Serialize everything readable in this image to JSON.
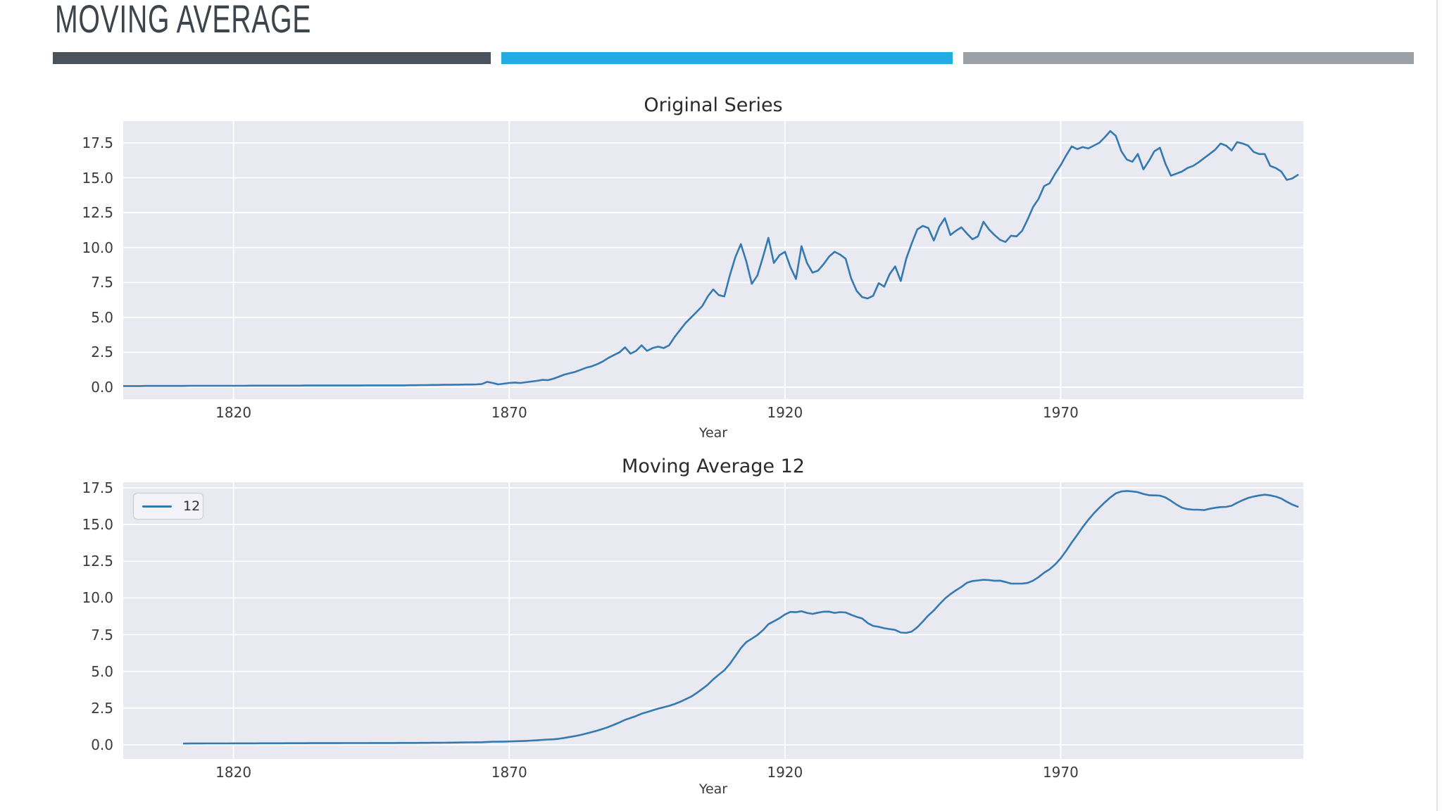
{
  "slide": {
    "title": "MOVING AVERAGE"
  },
  "colors": {
    "accent_dark": "#4a535b",
    "accent_blue": "#23ace4",
    "accent_gray": "#9ba1a6",
    "line": "#3579b1",
    "plot_bg": "#e9e9f1",
    "grid": "#ffffff",
    "title_text": "#3d454c",
    "chart_text": "#2b2b2b",
    "tick_text": "#3a3a3a"
  },
  "chart_data": [
    {
      "type": "line",
      "title": "Original Series",
      "xlabel": "Year",
      "ylabel": "",
      "grid": true,
      "legend": null,
      "x_ticks": [
        1820,
        1870,
        1920,
        1970
      ],
      "y_ticks": [
        "0.0",
        "2.5",
        "5.0",
        "7.5",
        "10.0",
        "12.5",
        "15.0",
        "17.5"
      ],
      "x_range": [
        1800,
        2014
      ],
      "y_range": [
        -0.86,
        19.06
      ],
      "series": [
        {
          "name": "original",
          "start_year": 1800,
          "values": [
            0.08,
            0.08,
            0.08,
            0.08,
            0.09,
            0.09,
            0.09,
            0.09,
            0.09,
            0.09,
            0.09,
            0.09,
            0.1,
            0.1,
            0.1,
            0.1,
            0.1,
            0.1,
            0.1,
            0.1,
            0.1,
            0.1,
            0.1,
            0.11,
            0.11,
            0.11,
            0.11,
            0.11,
            0.11,
            0.11,
            0.11,
            0.11,
            0.11,
            0.12,
            0.12,
            0.12,
            0.12,
            0.12,
            0.12,
            0.12,
            0.12,
            0.12,
            0.12,
            0.12,
            0.13,
            0.13,
            0.13,
            0.13,
            0.13,
            0.13,
            0.13,
            0.13,
            0.14,
            0.14,
            0.15,
            0.15,
            0.16,
            0.16,
            0.17,
            0.17,
            0.18,
            0.18,
            0.19,
            0.19,
            0.2,
            0.22,
            0.38,
            0.3,
            0.2,
            0.25,
            0.3,
            0.33,
            0.3,
            0.35,
            0.4,
            0.45,
            0.52,
            0.5,
            0.6,
            0.75,
            0.9,
            1.0,
            1.1,
            1.25,
            1.4,
            1.5,
            1.65,
            1.85,
            2.1,
            2.3,
            2.5,
            2.85,
            2.4,
            2.6,
            3.0,
            2.6,
            2.8,
            2.9,
            2.8,
            3.0,
            3.6,
            4.1,
            4.6,
            5.0,
            5.4,
            5.8,
            6.5,
            7.0,
            6.6,
            6.5,
            8.0,
            9.3,
            10.25,
            9.0,
            7.4,
            8.0,
            9.3,
            10.7,
            8.9,
            9.45,
            9.7,
            8.6,
            7.75,
            10.1,
            8.9,
            8.2,
            8.35,
            8.8,
            9.35,
            9.7,
            9.5,
            9.2,
            7.8,
            6.9,
            6.45,
            6.35,
            6.55,
            7.45,
            7.2,
            8.1,
            8.65,
            7.6,
            9.2,
            10.3,
            11.3,
            11.55,
            11.4,
            10.5,
            11.5,
            12.1,
            10.9,
            11.2,
            11.45,
            11.0,
            10.6,
            10.8,
            11.85,
            11.3,
            10.9,
            10.55,
            10.4,
            10.85,
            10.8,
            11.2,
            12.0,
            12.9,
            13.5,
            14.4,
            14.6,
            15.3,
            15.9,
            16.6,
            17.25,
            17.05,
            17.2,
            17.1,
            17.3,
            17.5,
            17.9,
            18.35,
            18.0,
            16.9,
            16.3,
            16.15,
            16.7,
            15.6,
            16.2,
            16.9,
            17.15,
            16.0,
            15.15,
            15.3,
            15.45,
            15.7,
            15.85,
            16.1,
            16.4,
            16.7,
            17.0,
            17.45,
            17.3,
            16.95,
            17.55,
            17.45,
            17.3,
            16.85,
            16.7,
            16.7,
            15.85,
            15.7,
            15.45,
            14.85,
            14.95,
            15.2
          ]
        }
      ]
    },
    {
      "type": "line",
      "title": "Moving Average 12",
      "xlabel": "Year",
      "ylabel": "",
      "grid": true,
      "legend": {
        "label": "12",
        "position": "upper left"
      },
      "x_ticks": [
        1820,
        1870,
        1920,
        1970
      ],
      "y_ticks": [
        "0.0",
        "2.5",
        "5.0",
        "7.5",
        "10.0",
        "12.5",
        "15.0",
        "17.5"
      ],
      "x_range": [
        1800,
        2014
      ],
      "y_range": [
        -0.96,
        17.88
      ],
      "series": [
        {
          "name": "12",
          "derived": "rolling_mean",
          "window": 12,
          "source_chart": 0,
          "source_series": 0
        }
      ]
    }
  ]
}
